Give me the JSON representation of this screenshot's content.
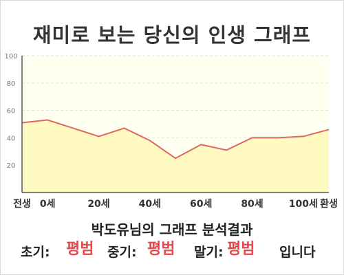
{
  "chart_data": {
    "type": "area",
    "title": "재미로 보는 당신의 인생 그래프",
    "x_labels": [
      "전생",
      "0세",
      "20세",
      "40세",
      "60세",
      "80세",
      "100세",
      "환생"
    ],
    "y_ticks": [
      20,
      40,
      60,
      80,
      100
    ],
    "ylim": [
      0,
      100
    ],
    "grid": true,
    "points": [
      {
        "x": "전생",
        "y": 51
      },
      {
        "x": "0세",
        "y": 53
      },
      {
        "x": "10세",
        "y": 47
      },
      {
        "x": "20세",
        "y": 41
      },
      {
        "x": "30세",
        "y": 47
      },
      {
        "x": "40세",
        "y": 38
      },
      {
        "x": "50세",
        "y": 25
      },
      {
        "x": "60세",
        "y": 35
      },
      {
        "x": "70세",
        "y": 31
      },
      {
        "x": "80세",
        "y": 40
      },
      {
        "x": "90세",
        "y": 40
      },
      {
        "x": "100세",
        "y": 41
      },
      {
        "x": "환생",
        "y": 46
      }
    ],
    "colors": {
      "line": "#e06666",
      "fill": "#fffac0",
      "background": "#fffff0",
      "grid": "#e0e0e0",
      "axis": "#555555"
    }
  },
  "result": {
    "title": "박도유님의 그래프 분석결과",
    "early_label": "초기:",
    "early_value": "평범",
    "middle_label": "중기:",
    "middle_value": "평범",
    "late_label": "말기:",
    "late_value": "평범",
    "suffix": "입니다",
    "accent_color": "#e8474b"
  }
}
